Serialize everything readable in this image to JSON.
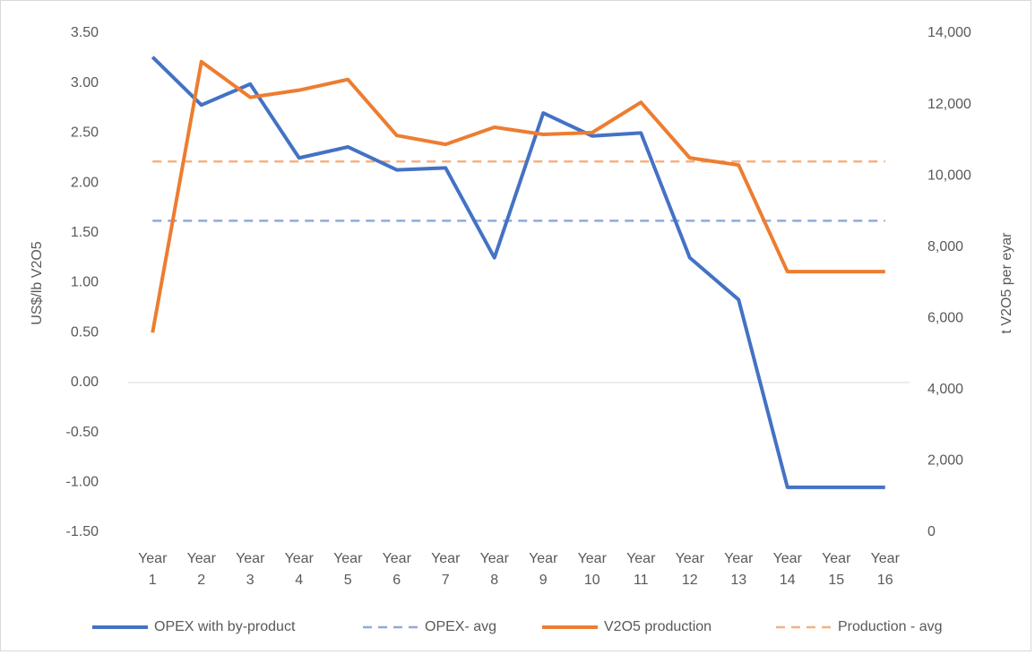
{
  "chart_data": {
    "type": "line",
    "categories": [
      "Year 1",
      "Year 2",
      "Year 3",
      "Year 4",
      "Year 5",
      "Year 6",
      "Year 7",
      "Year 8",
      "Year 9",
      "Year 10",
      "Year 11",
      "Year 12",
      "Year 13",
      "Year 14",
      "Year 15",
      "Year 16"
    ],
    "y_label": "US$/lb V2O5",
    "y2_label": "t V2O5 per eyar",
    "ylim": [
      -1.5,
      3.5
    ],
    "yticks": [
      {
        "value": 3.5,
        "label": "3.50"
      },
      {
        "value": 3,
        "label": "3.00"
      },
      {
        "value": 2.5,
        "label": "2.50"
      },
      {
        "value": 2,
        "label": "2.00"
      },
      {
        "value": 1.5,
        "label": "1.50"
      },
      {
        "value": 1,
        "label": "1.00"
      },
      {
        "value": 0.5,
        "label": "0.50"
      },
      {
        "value": 0,
        "label": "0.00"
      },
      {
        "value": -0.5,
        "label": "-0.50"
      },
      {
        "value": -1,
        "label": "-1.00"
      },
      {
        "value": -1.5,
        "label": "-1.50"
      }
    ],
    "y2lim": [
      0,
      14000
    ],
    "y2ticks": [
      {
        "value": 14000,
        "label": "14,000"
      },
      {
        "value": 12000,
        "label": "12,000"
      },
      {
        "value": 10000,
        "label": "10,000"
      },
      {
        "value": 8000,
        "label": "8,000"
      },
      {
        "value": 6000,
        "label": "6,000"
      },
      {
        "value": 4000,
        "label": "4,000"
      },
      {
        "value": 2000,
        "label": "2,000"
      },
      0
    ],
    "legend": "bottom",
    "series": [
      {
        "name": "OPEX with by-product",
        "color": "#4472c4",
        "dashed": false,
        "values": [
          3.26,
          2.78,
          2.99,
          2.25,
          2.36,
          2.13,
          2.15,
          1.25,
          2.7,
          2.47,
          2.5,
          1.25,
          0.83,
          -1.05,
          -1.05,
          -1.05
        ]
      },
      {
        "name": "OPEX- avg",
        "color": "#8faadc",
        "dashed": true,
        "values": [
          1.62,
          1.62,
          1.62,
          1.62,
          1.62,
          1.62,
          1.62,
          1.62,
          1.62,
          1.62,
          1.62,
          1.62,
          1.62,
          1.62,
          1.62,
          1.62
        ]
      },
      {
        "name": "V2O5 production",
        "color": "#ed7d31",
        "dashed": false,
        "axis": "y2",
        "values": [
          5600,
          13200,
          12200,
          12400,
          12700,
          11130,
          10880,
          11360,
          11160,
          11210,
          12060,
          10500,
          10300,
          7310,
          7310,
          7310
        ]
      },
      {
        "name": "Production - avg",
        "color": "#f4b183",
        "dashed": true,
        "axis": "y2",
        "values": [
          10400,
          10400,
          10400,
          10400,
          10400,
          10400,
          10400,
          10400,
          10400,
          10400,
          10400,
          10400,
          10400,
          10400,
          10400,
          10400
        ]
      }
    ]
  }
}
